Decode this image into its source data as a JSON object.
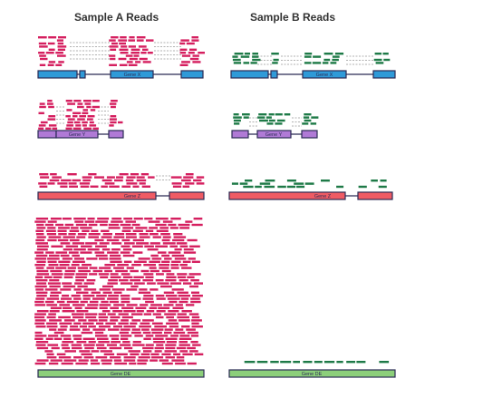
{
  "titles": {
    "sample_a": "Sample A Reads",
    "sample_b": "Sample B Reads"
  },
  "colors": {
    "sample_a_read": "#d51f5f",
    "sample_b_read": "#1e7a47",
    "gene_x": "#2f9ad8",
    "gene_y": "#b07ad6",
    "gene_z": "#ef5b64",
    "gene_de": "#8ccf7a",
    "outline": "#2b2b55",
    "junction": "#999999"
  },
  "genes": [
    {
      "id": "x",
      "label": "Gene X"
    },
    {
      "id": "y",
      "label": "Gene Y"
    },
    {
      "id": "z",
      "label": "Gene Z"
    },
    {
      "id": "de",
      "label": "Gene DE"
    }
  ]
}
